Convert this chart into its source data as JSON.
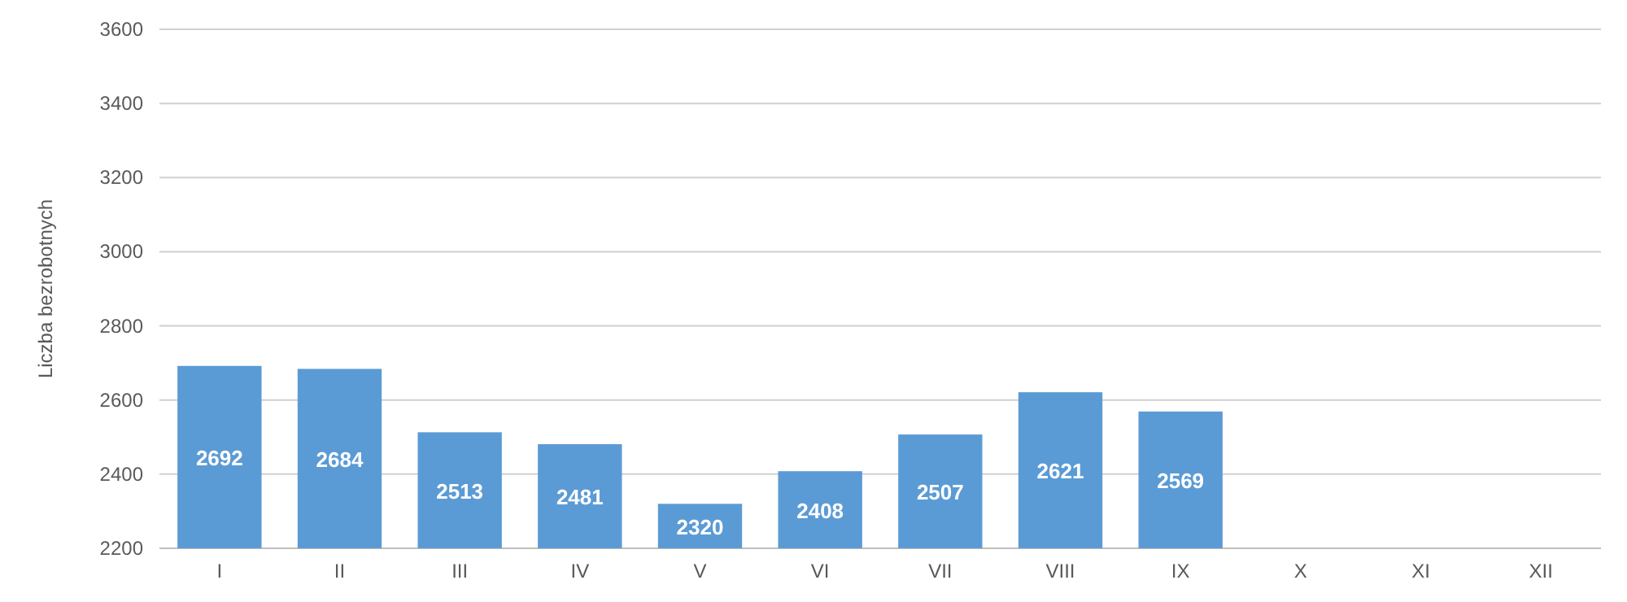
{
  "chart_data": {
    "type": "bar",
    "ylabel": "Liczba bezrobotnych",
    "categories": [
      "I",
      "II",
      "III",
      "IV",
      "V",
      "VI",
      "VII",
      "VIII",
      "IX",
      "X",
      "XI",
      "XII"
    ],
    "values": [
      2692,
      2684,
      2513,
      2481,
      2320,
      2408,
      2507,
      2621,
      2569,
      null,
      null,
      null
    ],
    "color": "#5b9bd5",
    "ylim": [
      2200,
      3600
    ],
    "yticks": [
      2200,
      2400,
      2600,
      2800,
      3000,
      3200,
      3400,
      3600
    ],
    "grid": "y",
    "data_labels": true
  }
}
